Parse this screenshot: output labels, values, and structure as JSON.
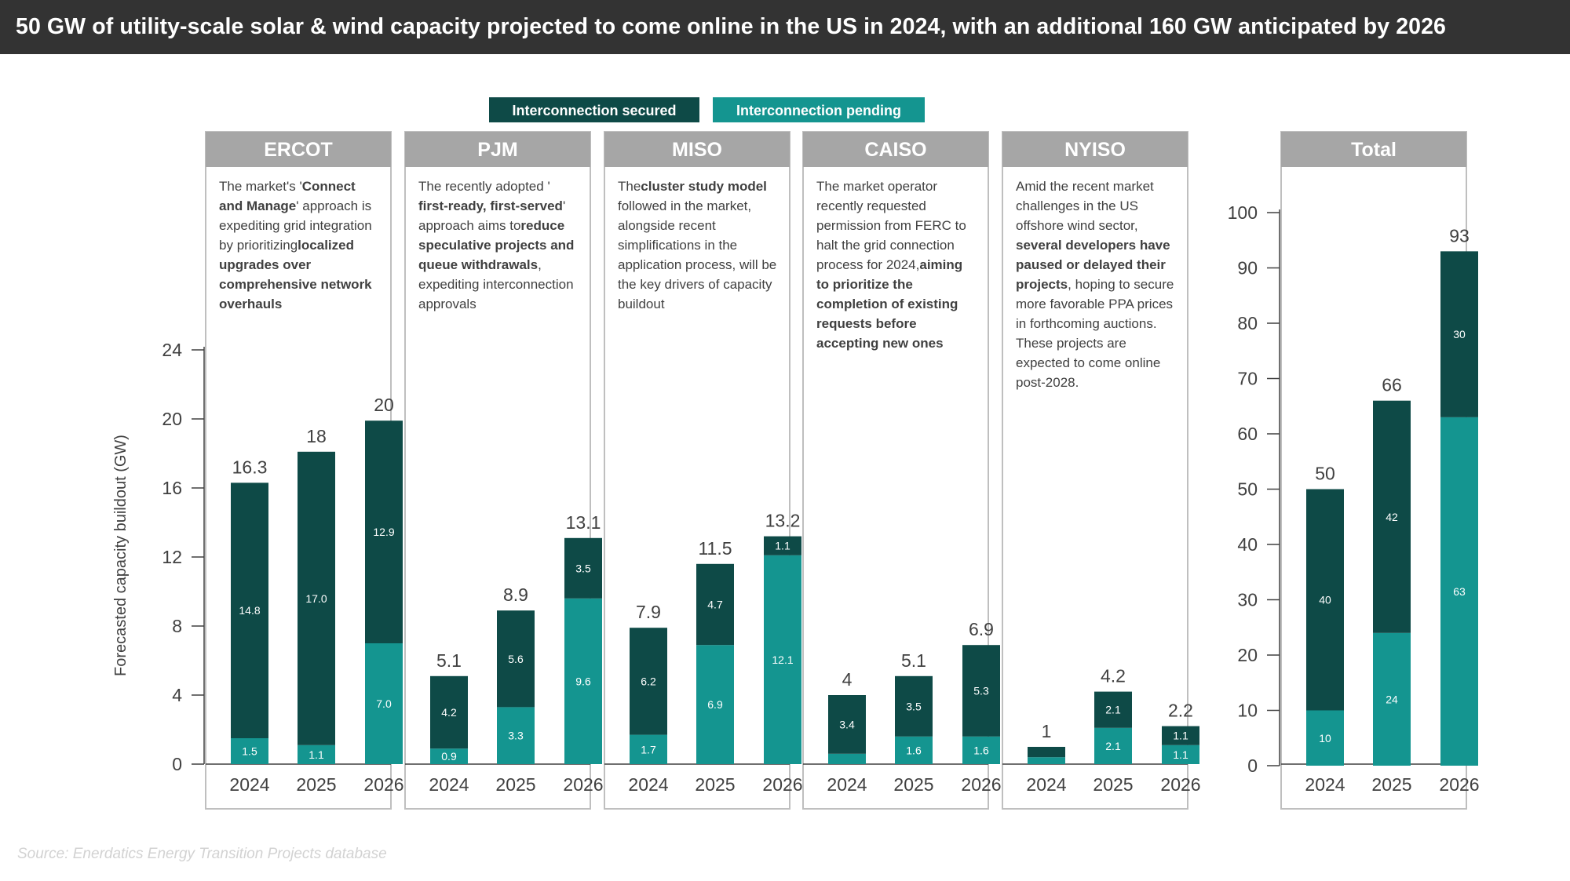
{
  "header": {
    "title": "50 GW of utility-scale solar & wind capacity projected to come online in the US in 2024, with an additional 160 GW anticipated by 2026"
  },
  "footer": {
    "source": "Source: Enerdatics Energy Transition Projects database"
  },
  "colors": {
    "secured": "#0e4a47",
    "pending": "#149590",
    "panel_header": "#a6a6a6",
    "title_bar": "#333333"
  },
  "chart_data": [
    {
      "type": "bar",
      "stacked": true,
      "ylabel": "Forecasted capacity buildout (GW)",
      "ylim": [
        0,
        24
      ],
      "yticks": [
        0,
        4,
        8,
        12,
        16,
        20,
        24
      ],
      "legend": {
        "placement": "top",
        "entries": [
          "Interconnection secured",
          "Interconnection pending"
        ]
      },
      "panels": [
        {
          "name": "ERCOT",
          "note": [
            [
              "The market's '",
              "n"
            ],
            [
              "Connect and Manage",
              "b"
            ],
            [
              "' approach is expediting grid integration by prioritizing ",
              "n"
            ],
            [
              "localized upgrades over comprehensive network overhauls",
              "b"
            ]
          ],
          "categories": [
            "2024",
            "2025",
            "2026"
          ],
          "totals": [
            "16.3",
            "18",
            "20"
          ],
          "series": [
            {
              "name": "Interconnection secured",
              "values": [
                14.8,
                17.0,
                12.9
              ],
              "labels": [
                "14.8",
                "17.0",
                "12.9"
              ]
            },
            {
              "name": "Interconnection pending",
              "values": [
                1.5,
                1.1,
                7.0
              ],
              "labels": [
                "1.5",
                "1.1",
                "7.0"
              ]
            }
          ]
        },
        {
          "name": "PJM",
          "note": [
            [
              "The recently adopted '",
              "n"
            ],
            [
              "first-ready, first-served",
              "b"
            ],
            [
              "' approach aims to ",
              "n"
            ],
            [
              "reduce speculative projects and queue withdrawals",
              "b"
            ],
            [
              ", expediting interconnection approvals",
              "n"
            ]
          ],
          "categories": [
            "2024",
            "2025",
            "2026"
          ],
          "totals": [
            "5.1",
            "8.9",
            "13.1"
          ],
          "series": [
            {
              "name": "Interconnection secured",
              "values": [
                4.2,
                5.6,
                3.5
              ],
              "labels": [
                "4.2",
                "5.6",
                "3.5"
              ]
            },
            {
              "name": "Interconnection pending",
              "values": [
                0.9,
                3.3,
                9.6
              ],
              "labels": [
                "0.9",
                "3.3",
                "9.6"
              ]
            }
          ]
        },
        {
          "name": "MISO",
          "note": [
            [
              "The ",
              "n"
            ],
            [
              "cluster study model",
              "b"
            ],
            [
              " followed in the market, alongside recent simplifications in the application process, will be the key drivers of capacity buildout",
              "n"
            ]
          ],
          "categories": [
            "2024",
            "2025",
            "2026"
          ],
          "totals": [
            "7.9",
            "11.5",
            "13.2"
          ],
          "series": [
            {
              "name": "Interconnection secured",
              "values": [
                6.2,
                4.7,
                1.1
              ],
              "labels": [
                "6.2",
                "4.7",
                "1.1"
              ]
            },
            {
              "name": "Interconnection pending",
              "values": [
                1.7,
                6.9,
                12.1
              ],
              "labels": [
                "1.7",
                "6.9",
                "12.1"
              ]
            }
          ]
        },
        {
          "name": "CAISO",
          "note": [
            [
              "The market operator recently requested permission from FERC to halt the grid connection process for 2024, ",
              "n"
            ],
            [
              "aiming to prioritize the completion of existing requests before accepting new ones",
              "b"
            ]
          ],
          "categories": [
            "2024",
            "2025",
            "2026"
          ],
          "totals": [
            "4",
            "5.1",
            "6.9"
          ],
          "series": [
            {
              "name": "Interconnection secured",
              "values": [
                3.4,
                3.5,
                5.3
              ],
              "labels": [
                "3.4",
                "3.5",
                "5.3"
              ]
            },
            {
              "name": "Interconnection pending",
              "values": [
                0.6,
                1.6,
                1.6
              ],
              "labels": [
                "",
                "1.6",
                "1.6"
              ]
            }
          ]
        },
        {
          "name": "NYISO",
          "note": [
            [
              "Amid the recent market challenges in the US offshore wind sector, ",
              "n"
            ],
            [
              "several developers have paused or delayed their projects",
              "b"
            ],
            [
              ", hoping to secure more favorable PPA prices in forthcoming auctions. These projects are expected to come online post-2028.",
              "n"
            ]
          ],
          "categories": [
            "2024",
            "2025",
            "2026"
          ],
          "totals": [
            "1",
            "4.2",
            "2.2"
          ],
          "series": [
            {
              "name": "Interconnection secured",
              "values": [
                0.6,
                2.1,
                1.1
              ],
              "labels": [
                "",
                "2.1",
                "1.1"
              ]
            },
            {
              "name": "Interconnection pending",
              "values": [
                0.4,
                2.1,
                1.1
              ],
              "labels": [
                "",
                "2.1",
                "1.1"
              ]
            }
          ]
        }
      ]
    },
    {
      "type": "bar",
      "stacked": true,
      "title": "Total",
      "ylim": [
        0,
        100
      ],
      "yticks": [
        0,
        10,
        20,
        30,
        40,
        50,
        60,
        70,
        80,
        90,
        100
      ],
      "categories": [
        "2024",
        "2025",
        "2026"
      ],
      "totals": [
        "50",
        "66",
        "93"
      ],
      "series": [
        {
          "name": "Interconnection secured",
          "values": [
            40,
            42,
            30
          ],
          "labels": [
            "40",
            "42",
            "30"
          ]
        },
        {
          "name": "Interconnection pending",
          "values": [
            10,
            24,
            63
          ],
          "labels": [
            "10",
            "24",
            "63"
          ]
        }
      ]
    }
  ]
}
